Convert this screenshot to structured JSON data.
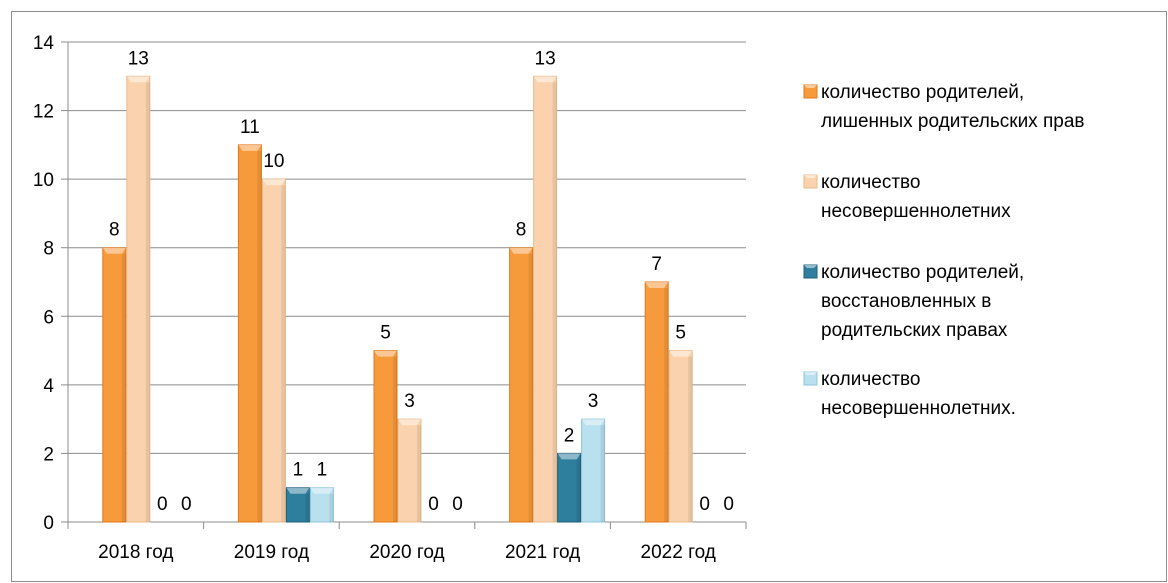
{
  "chart_data": {
    "type": "bar",
    "categories": [
      "2018 год",
      "2019 год",
      "2020 год",
      "2021 год",
      "2022 год"
    ],
    "series": [
      {
        "name": "количество родителей, лишенных родительских прав",
        "values": [
          8,
          11,
          5,
          8,
          7
        ],
        "color": "#F79A3C"
      },
      {
        "name": "количество несовершеннолетних",
        "values": [
          13,
          10,
          3,
          13,
          5
        ],
        "color": "#FAD3AE"
      },
      {
        "name": "количество родителей, восстановленных в родительских правах",
        "values": [
          0,
          1,
          0,
          2,
          0
        ],
        "color": "#2E7E9E"
      },
      {
        "name": "количество несовершеннолетних.",
        "values": [
          0,
          1,
          0,
          3,
          0
        ],
        "color": "#B9E0EE"
      }
    ],
    "legend_lines": [
      [
        "количество родителей,",
        "лишенных родительских прав"
      ],
      [
        "количество",
        "несовершеннолетних"
      ],
      [
        "количество родителей,",
        "восстановленных в",
        "родительских правах"
      ],
      [
        "количество",
        "несовершеннолетних."
      ]
    ],
    "y_ticks": [
      "0",
      "2",
      "4",
      "6",
      "8",
      "10",
      "12",
      "14"
    ],
    "ylim": [
      0,
      14
    ],
    "grid": true,
    "legend_position": "right",
    "title": "",
    "xlabel": "",
    "ylabel": ""
  }
}
